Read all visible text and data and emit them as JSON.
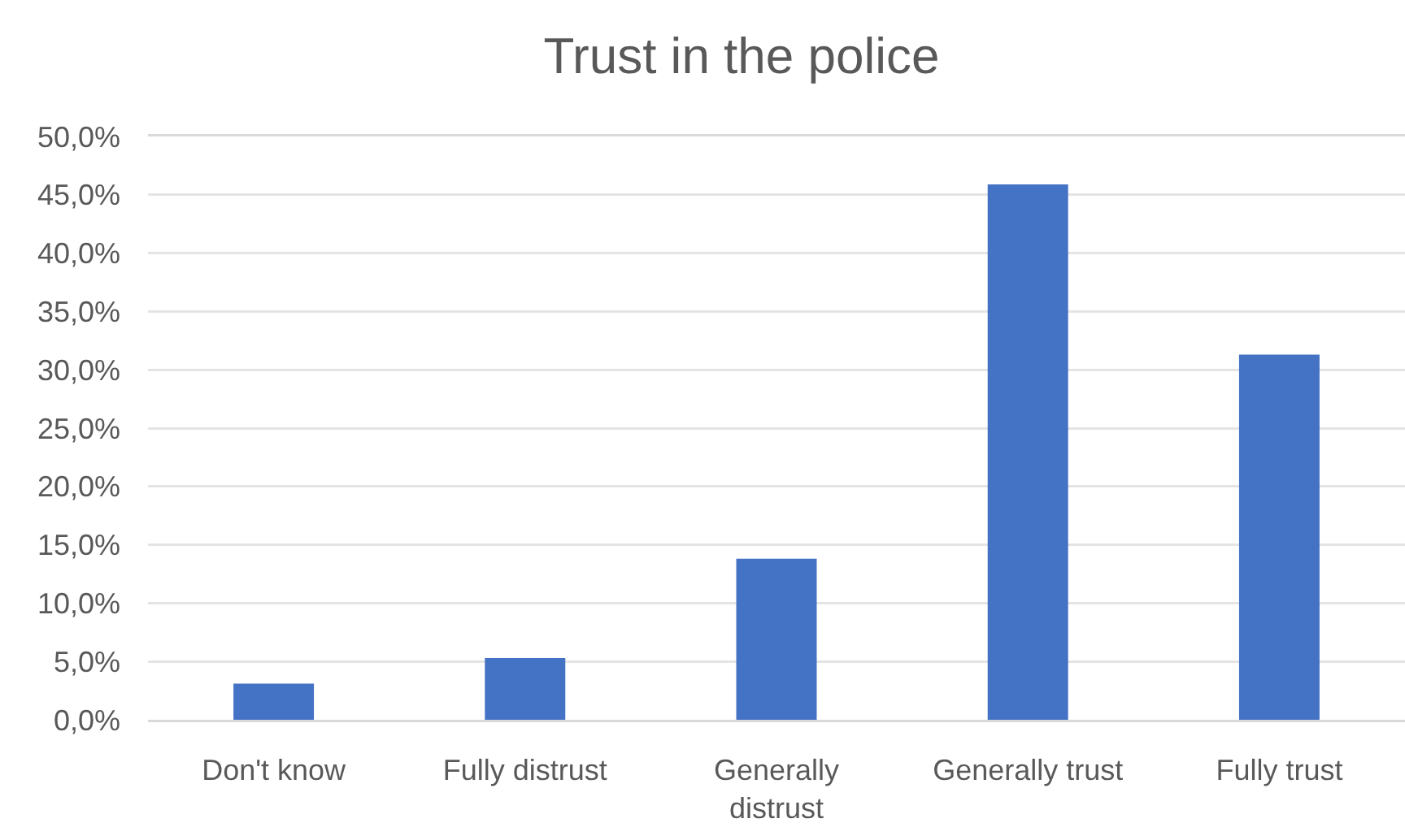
{
  "chart_data": {
    "type": "bar",
    "title": "Trust in the police",
    "categories": [
      "Don't know",
      "Fully distrust",
      "Generally distrust",
      "Generally trust",
      "Fully trust"
    ],
    "values": [
      3.1,
      5.3,
      13.8,
      45.9,
      31.3
    ],
    "color": "#4472c4",
    "ylim": [
      0,
      50
    ],
    "yticks": [
      {
        "value": 0,
        "label": "0,0%"
      },
      {
        "value": 5,
        "label": "5,0%"
      },
      {
        "value": 10,
        "label": "10,0%"
      },
      {
        "value": 15,
        "label": "15,0%"
      },
      {
        "value": 20,
        "label": "20,0%"
      },
      {
        "value": 25,
        "label": "25,0%"
      },
      {
        "value": 30,
        "label": "30,0%"
      },
      {
        "value": 35,
        "label": "35,0%"
      },
      {
        "value": 40,
        "label": "40,0%"
      },
      {
        "value": 45,
        "label": "45,0%"
      },
      {
        "value": 50,
        "label": "50,0%"
      }
    ],
    "grid": "y"
  }
}
